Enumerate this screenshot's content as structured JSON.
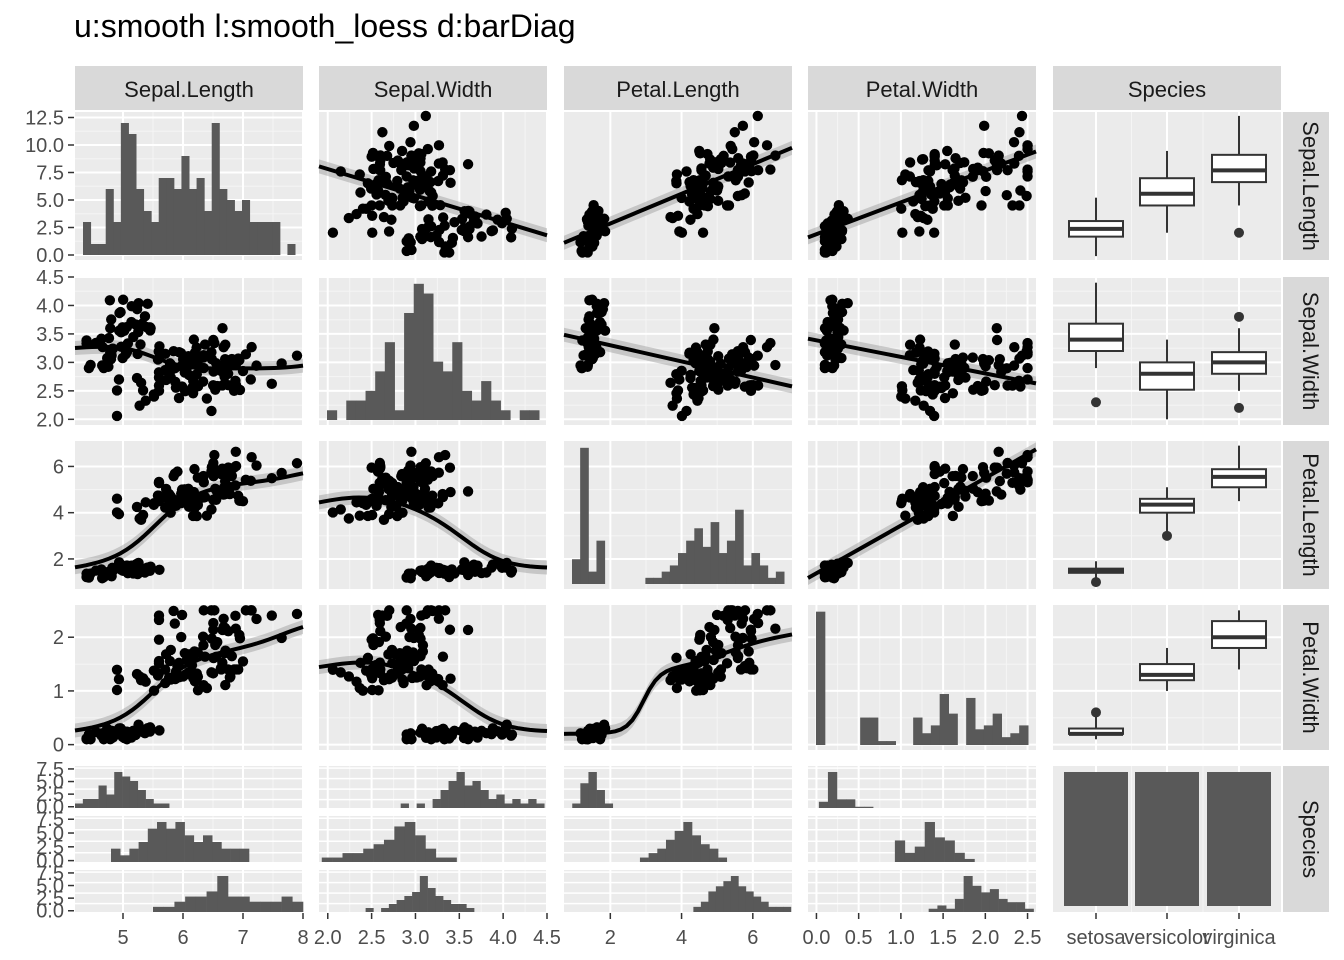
{
  "chart_data": {
    "type": "scatter-matrix",
    "title": "u:smooth l:smooth_loess d:barDiag",
    "variables": [
      "Sepal.Length",
      "Sepal.Width",
      "Petal.Length",
      "Petal.Width",
      "Species"
    ],
    "species_levels": [
      "setosa",
      "versicolor",
      "virginica"
    ],
    "axis_ticks": {
      "Sepal.Length": [
        5,
        6,
        7,
        8
      ],
      "Sepal.Width": [
        "2.0",
        "2.5",
        "3.0",
        "3.5",
        "4.0",
        "4.5"
      ],
      "Petal.Length": [
        2,
        4,
        6
      ],
      "Petal.Width": [
        "0.0",
        "0.5",
        "1.0",
        "1.5",
        "2.0",
        "2.5"
      ],
      "Species": [
        "setosa",
        "versicolor",
        "virginica"
      ]
    },
    "row_ticks": {
      "Sepal.Length": [
        "0.0",
        "2.5",
        "5.0",
        "7.5",
        "10.0",
        "12.5"
      ],
      "Sepal.Width": [
        "2.0",
        "2.5",
        "3.0",
        "3.5",
        "4.0",
        "4.5"
      ],
      "Petal.Length": [
        "2",
        "4",
        "6"
      ],
      "Petal.Width": [
        "0",
        "1",
        "2"
      ],
      "Species": [
        "0.0",
        "2.5",
        "5.0",
        "7.5"
      ]
    },
    "axis_ranges": {
      "Sepal.Length": [
        4.2,
        8.0
      ],
      "Sepal.Width": [
        1.9,
        4.5
      ],
      "Petal.Length": [
        0.7,
        7.1
      ],
      "Petal.Width": [
        -0.1,
        2.6
      ]
    },
    "diag_histograms": {
      "Sepal.Length": [
        3,
        1,
        1,
        6,
        3,
        12,
        11,
        6,
        4,
        3,
        7,
        7,
        6,
        9,
        6,
        7,
        4,
        12,
        6,
        5,
        4,
        5,
        3,
        3,
        3,
        3,
        0,
        1
      ],
      "Sepal.Width": [
        1,
        0,
        2,
        2,
        3,
        5,
        8,
        1,
        11,
        14,
        13,
        6,
        5,
        8,
        3,
        2,
        4,
        2,
        1,
        0,
        1,
        1
      ],
      "Petal.Length": [
        4,
        22,
        2,
        7,
        0,
        0,
        0,
        0,
        0,
        1,
        1,
        2,
        3,
        5,
        7,
        9,
        6,
        10,
        5,
        7,
        12,
        3,
        5,
        3,
        1,
        2
      ],
      "Petal.Width": [
        34,
        0,
        0,
        0,
        0,
        7,
        7,
        1,
        1,
        0,
        0,
        7,
        3,
        5,
        13,
        8,
        0,
        12,
        4,
        5,
        8,
        2,
        3,
        5
      ],
      "Species": [
        50,
        50,
        50
      ]
    },
    "species_box_stats": {
      "Sepal.Length": [
        [
          4.3,
          4.8,
          5.0,
          5.2,
          5.8
        ],
        [
          4.9,
          5.6,
          5.9,
          6.3,
          7.0
        ],
        [
          5.6,
          6.2,
          6.5,
          6.9,
          7.9
        ]
      ],
      "Sepal.Width": [
        [
          2.9,
          3.2,
          3.4,
          3.68,
          4.4
        ],
        [
          2.0,
          2.52,
          2.8,
          3.0,
          3.4
        ],
        [
          2.5,
          2.8,
          3.0,
          3.18,
          3.6
        ]
      ],
      "Petal.Length": [
        [
          1.1,
          1.4,
          1.5,
          1.58,
          1.9
        ],
        [
          3.0,
          4.0,
          4.35,
          4.6,
          5.1
        ],
        [
          4.5,
          5.1,
          5.55,
          5.88,
          6.9
        ]
      ],
      "Petal.Width": [
        [
          0.1,
          0.2,
          0.2,
          0.3,
          0.6
        ],
        [
          1.0,
          1.2,
          1.3,
          1.5,
          1.8
        ],
        [
          1.4,
          1.8,
          2.0,
          2.3,
          2.5
        ]
      ]
    },
    "box_outliers": {
      "Sepal.Length": [
        [],
        [],
        [
          4.9
        ]
      ],
      "Sepal.Width": [
        [
          2.3
        ],
        [],
        [
          2.2,
          3.8
        ]
      ],
      "Petal.Length": [
        [
          1.0
        ],
        [
          3.0
        ],
        []
      ],
      "Petal.Width": [
        [
          0.6
        ],
        [],
        []
      ]
    },
    "species_histograms": {
      "Sepal.Length": [
        [
          1,
          2,
          2,
          5,
          3,
          8,
          7,
          6,
          4,
          2,
          1,
          1,
          0
        ],
        [
          2,
          1,
          2,
          3,
          5,
          6,
          5,
          6,
          4,
          3,
          4,
          3,
          2,
          2,
          2
        ],
        [
          1,
          1,
          2,
          3,
          3,
          4,
          7,
          3,
          3,
          2,
          2,
          2,
          3,
          2
        ]
      ],
      "Sepal.Width": [
        [
          1,
          0,
          1,
          0,
          2,
          4,
          6,
          8,
          5,
          6,
          4,
          2,
          3,
          1,
          2,
          1,
          2,
          1
        ],
        [
          1,
          1,
          2,
          2,
          3,
          4,
          5,
          8,
          9,
          6,
          3,
          1,
          1
        ],
        [
          1,
          0,
          1,
          2,
          3,
          4,
          5,
          9,
          6,
          4,
          3,
          2,
          2,
          1
        ]
      ],
      "Petal.Length": [
        [
          2,
          11,
          16,
          8,
          2
        ],
        [
          1,
          2,
          3,
          5,
          7,
          9,
          6,
          4,
          3,
          1
        ],
        [
          1,
          2,
          4,
          5,
          6,
          7,
          5,
          4,
          3,
          2,
          1,
          1,
          1
        ]
      ],
      "Petal.Width": [
        [
          5,
          29,
          7,
          7,
          1,
          1
        ],
        [
          7,
          3,
          5,
          13,
          8,
          7,
          3,
          1
        ],
        [
          1,
          2,
          1,
          4,
          11,
          8,
          6,
          7,
          4,
          3,
          3,
          1
        ]
      ]
    },
    "legend": "none",
    "grid": true
  }
}
